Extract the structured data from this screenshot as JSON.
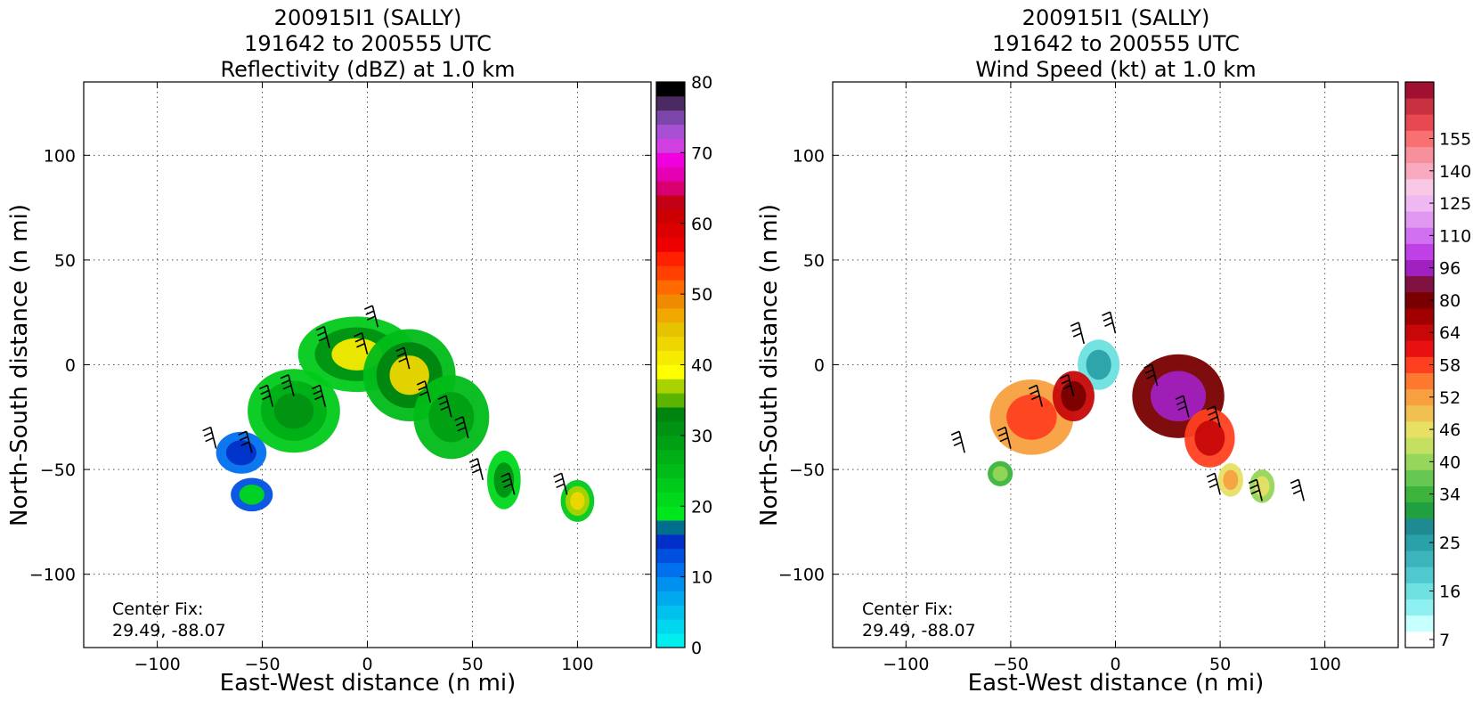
{
  "chart_data": [
    {
      "type": "heatmap",
      "title_lines": [
        "200915I1 (SALLY)",
        "191642 to 200555 UTC",
        "Reflectivity (dBZ) at 1.0 km"
      ],
      "xlabel": "East-West distance (n mi)",
      "ylabel": "North-South distance (n mi)",
      "xlim": [
        -135,
        135
      ],
      "ylim": [
        -135,
        135
      ],
      "xticks": [
        -100,
        -50,
        0,
        50,
        100
      ],
      "yticks": [
        -100,
        -50,
        0,
        50,
        100
      ],
      "grid": true,
      "annotation": {
        "label": "Center Fix:",
        "value": "29.49, -88.07"
      },
      "colorbar": {
        "min": 0,
        "max": 80,
        "tick_values": [
          0,
          10,
          20,
          30,
          40,
          50,
          60,
          70,
          80
        ],
        "tick_labels": [
          "0",
          "10",
          "20",
          "30",
          "40",
          "50",
          "60",
          "70",
          "80"
        ],
        "colors": [
          "#00eeee",
          "#00d7ee",
          "#00c0ee",
          "#00a8ee",
          "#0090ee",
          "#0070ee",
          "#0050e0",
          "#0030c8",
          "#006e8c",
          "#00e61e",
          "#00d81c",
          "#00ca1a",
          "#00bc18",
          "#00ae16",
          "#00a014",
          "#009212",
          "#008410",
          "#5ab400",
          "#aad200",
          "#ffff00",
          "#f6ea00",
          "#eed600",
          "#e6c200",
          "#f0a800",
          "#f08a00",
          "#ff6a00",
          "#ff4000",
          "#ff2000",
          "#ee0000",
          "#dd0000",
          "#cc0000",
          "#c40016",
          "#d80070",
          "#e600b4",
          "#f000dc",
          "#d040e0",
          "#a850d4",
          "#7c46aa",
          "#4a2a60",
          "#000000"
        ]
      },
      "echo_bands": [
        {
          "center": [
            -60,
            -42
          ],
          "dx": 12,
          "dy": 10,
          "levels": [
            10,
            15
          ]
        },
        {
          "center": [
            -55,
            -62
          ],
          "dx": 10,
          "dy": 8,
          "levels": [
            12,
            20
          ]
        },
        {
          "center": [
            -35,
            -22
          ],
          "dx": 22,
          "dy": 20,
          "levels": [
            22,
            26,
            30
          ]
        },
        {
          "center": [
            -5,
            5
          ],
          "dx": 28,
          "dy": 18,
          "levels": [
            22,
            30,
            40
          ]
        },
        {
          "center": [
            20,
            -5
          ],
          "dx": 22,
          "dy": 22,
          "levels": [
            24,
            32,
            42
          ]
        },
        {
          "center": [
            40,
            -25
          ],
          "dx": 18,
          "dy": 20,
          "levels": [
            24,
            28
          ]
        },
        {
          "center": [
            65,
            -55
          ],
          "dx": 8,
          "dy": 14,
          "levels": [
            20,
            30
          ]
        },
        {
          "center": [
            100,
            -65
          ],
          "dx": 8,
          "dy": 10,
          "levels": [
            22,
            36,
            42
          ]
        }
      ],
      "wind_barbs": [
        {
          "x": -72,
          "y": -40
        },
        {
          "x": -55,
          "y": -42
        },
        {
          "x": -45,
          "y": -20
        },
        {
          "x": -35,
          "y": -15
        },
        {
          "x": -20,
          "y": -20
        },
        {
          "x": -18,
          "y": 8
        },
        {
          "x": 0,
          "y": 5
        },
        {
          "x": 5,
          "y": 18
        },
        {
          "x": 20,
          "y": -2
        },
        {
          "x": 30,
          "y": -18
        },
        {
          "x": 40,
          "y": -25
        },
        {
          "x": 48,
          "y": -35
        },
        {
          "x": 55,
          "y": -55
        },
        {
          "x": 70,
          "y": -62
        },
        {
          "x": 95,
          "y": -62
        }
      ]
    },
    {
      "type": "heatmap",
      "title_lines": [
        "200915I1 (SALLY)",
        "191642 to 200555 UTC",
        "Wind Speed (kt) at 1.0 km"
      ],
      "xlabel": "East-West distance (n mi)",
      "ylabel": "North-South distance (n mi)",
      "xlim": [
        -135,
        135
      ],
      "ylim": [
        -135,
        135
      ],
      "xticks": [
        -100,
        -50,
        0,
        50,
        100
      ],
      "yticks": [
        -100,
        -50,
        0,
        50,
        100
      ],
      "grid": true,
      "annotation": {
        "label": "Center Fix:",
        "value": "29.49, -88.07"
      },
      "colorbar": {
        "n_bins": 29,
        "tick_bins": [
          1,
          4,
          7,
          10,
          13,
          16,
          19,
          22,
          25,
          28
        ],
        "tick_labels": [
          "7",
          "16",
          "25",
          "34",
          "40",
          "46",
          "52",
          "58",
          "64",
          "80",
          "96",
          "110",
          "125",
          "140",
          "155"
        ],
        "tick_label_bins": [
          0.5,
          3.5,
          6.5,
          9.5,
          11.5,
          13.5,
          15.5,
          17.5,
          19.5,
          21.5,
          23.5,
          25.5,
          27.5,
          29.5,
          31.5
        ],
        "colors": [
          "#ffffff",
          "#c8ffff",
          "#8ef0f0",
          "#6ee0e0",
          "#50c8d0",
          "#3cb4bc",
          "#2aa0a8",
          "#1e8a92",
          "#20a040",
          "#3cb43c",
          "#66c850",
          "#96d65a",
          "#c4e060",
          "#e6e064",
          "#f0c050",
          "#f8a040",
          "#ff7830",
          "#ff4020",
          "#e81010",
          "#c80808",
          "#a00000",
          "#780000",
          "#801040",
          "#a020c0",
          "#c040e8",
          "#d070f0",
          "#e098f0",
          "#eeb8f0",
          "#f8c8e4",
          "#f8aac0",
          "#f8909c",
          "#f87070",
          "#e84850",
          "#c83040",
          "#a01030"
        ]
      },
      "echo_bands": [
        {
          "center": [
            -8,
            0
          ],
          "dx": 10,
          "dy": 12,
          "levels": [
            16,
            25
          ]
        },
        {
          "center": [
            -40,
            -25
          ],
          "dx": 20,
          "dy": 18,
          "levels": [
            52,
            58
          ]
        },
        {
          "center": [
            -20,
            -15
          ],
          "dx": 10,
          "dy": 12,
          "levels": [
            64,
            80
          ]
        },
        {
          "center": [
            30,
            -15
          ],
          "dx": 22,
          "dy": 20,
          "levels": [
            80,
            96
          ]
        },
        {
          "center": [
            45,
            -35
          ],
          "dx": 12,
          "dy": 14,
          "levels": [
            58,
            64
          ]
        },
        {
          "center": [
            -55,
            -52
          ],
          "dx": 6,
          "dy": 6,
          "levels": [
            34,
            40
          ]
        },
        {
          "center": [
            55,
            -55
          ],
          "dx": 6,
          "dy": 8,
          "levels": [
            46,
            52
          ]
        },
        {
          "center": [
            70,
            -58
          ],
          "dx": 6,
          "dy": 8,
          "levels": [
            40,
            46
          ]
        }
      ],
      "wind_barbs": [
        {
          "x": -72,
          "y": -42
        },
        {
          "x": -50,
          "y": -40
        },
        {
          "x": -35,
          "y": -20
        },
        {
          "x": -20,
          "y": -15
        },
        {
          "x": -15,
          "y": 10
        },
        {
          "x": 0,
          "y": 15
        },
        {
          "x": 20,
          "y": -10
        },
        {
          "x": 35,
          "y": -25
        },
        {
          "x": 50,
          "y": -30
        },
        {
          "x": 50,
          "y": -62
        },
        {
          "x": 70,
          "y": -65
        },
        {
          "x": 90,
          "y": -65
        }
      ]
    }
  ]
}
